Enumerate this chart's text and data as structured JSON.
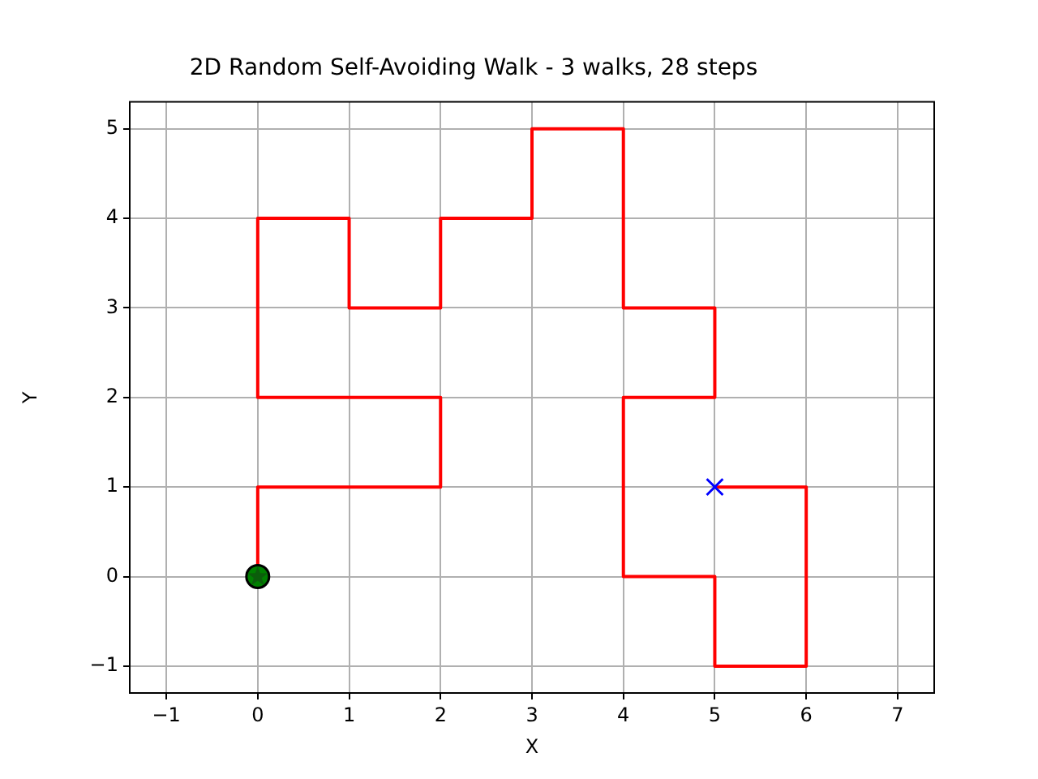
{
  "chart_data": {
    "type": "line",
    "title": "2D Random Self-Avoiding Walk - 3 walks, 28 steps",
    "xlabel": "X",
    "ylabel": "Y",
    "xlim": [
      -1.4,
      7.4
    ],
    "ylim": [
      -1.3,
      5.3
    ],
    "xticks": [
      {
        "value": -1,
        "label": "−1"
      },
      0,
      1,
      2,
      3,
      4,
      5,
      6,
      7
    ],
    "yticks": [
      {
        "value": -1,
        "label": "−1"
      },
      0,
      1,
      2,
      3,
      4,
      5
    ],
    "grid": true,
    "legend": false,
    "series": [
      {
        "color": "#ff0000",
        "marker": "none",
        "line_style": "solid",
        "x": [
          0,
          0,
          2,
          2,
          0,
          0,
          1,
          1,
          2,
          2,
          3,
          3,
          4,
          4,
          5,
          5,
          4,
          4,
          5,
          5,
          6,
          6,
          5
        ],
        "values": [
          0,
          1,
          1,
          2,
          2,
          4,
          4,
          3,
          3,
          4,
          4,
          5,
          5,
          3,
          3,
          2,
          2,
          0,
          0,
          -1,
          -1,
          1,
          1
        ]
      },
      {
        "type": "scatter",
        "color": "#008000",
        "marker": "circle",
        "x": [
          0
        ],
        "values": [
          0
        ]
      },
      {
        "type": "scatter",
        "color": "#0b5d0b",
        "marker": "star",
        "x": [
          0
        ],
        "values": [
          0
        ]
      },
      {
        "type": "scatter",
        "color": "#0000ff",
        "marker": "cross",
        "x": [
          5
        ],
        "values": [
          1
        ]
      }
    ]
  }
}
